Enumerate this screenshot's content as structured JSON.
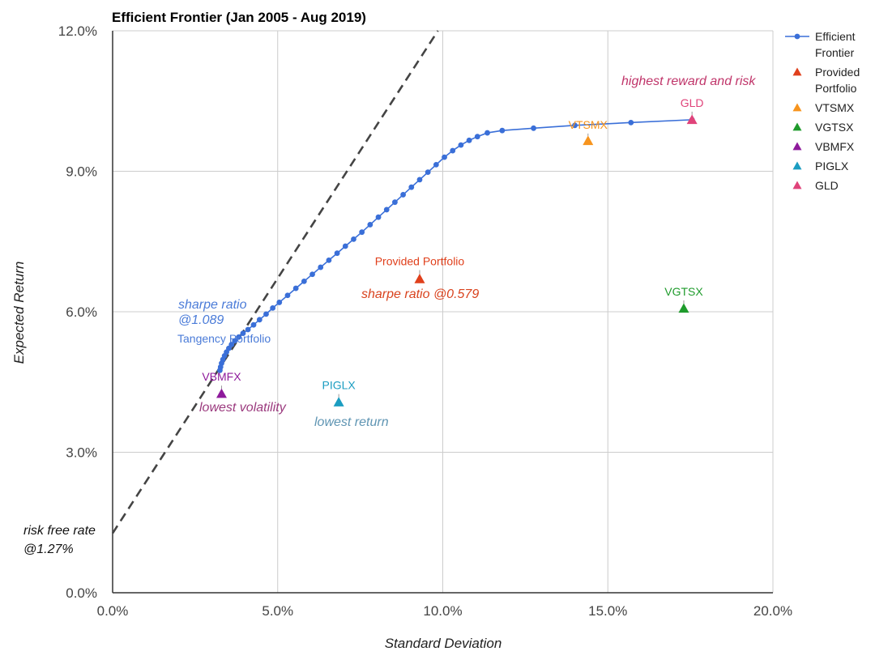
{
  "chart_data": {
    "type": "scatter",
    "title": "Efficient Frontier (Jan 2005 - Aug 2019)",
    "xlabel": "Standard Deviation",
    "ylabel": "Expected Return",
    "xlim": [
      0,
      20
    ],
    "ylim": [
      0,
      12
    ],
    "x_ticks": [
      "0.0%",
      "5.0%",
      "10.0%",
      "15.0%",
      "20.0%"
    ],
    "y_ticks": [
      "0.0%",
      "3.0%",
      "6.0%",
      "9.0%",
      "12.0%"
    ],
    "grid": true,
    "legend_position": "right",
    "colors": {
      "frontier": "#3a6fd8",
      "provided": "#e0401c",
      "vtsmx": "#f7941d",
      "vgtsx": "#1f9b2c",
      "vbmfx": "#8e1a9b",
      "piglx": "#1b9dc1",
      "gld": "#e0437a",
      "cml": "#444444"
    },
    "frontier": {
      "name": "Efficient Frontier",
      "points": [
        [
          3.25,
          4.75
        ],
        [
          3.27,
          4.82
        ],
        [
          3.3,
          4.9
        ],
        [
          3.34,
          4.98
        ],
        [
          3.39,
          5.06
        ],
        [
          3.45,
          5.14
        ],
        [
          3.52,
          5.22
        ],
        [
          3.6,
          5.3
        ],
        [
          3.7,
          5.38
        ],
        [
          3.82,
          5.46
        ],
        [
          3.95,
          5.54
        ],
        [
          4.1,
          5.62
        ],
        [
          4.27,
          5.72
        ],
        [
          4.45,
          5.83
        ],
        [
          4.65,
          5.95
        ],
        [
          4.85,
          6.08
        ],
        [
          5.05,
          6.2
        ],
        [
          5.3,
          6.35
        ],
        [
          5.55,
          6.5
        ],
        [
          5.8,
          6.65
        ],
        [
          6.05,
          6.8
        ],
        [
          6.3,
          6.95
        ],
        [
          6.55,
          7.1
        ],
        [
          6.8,
          7.25
        ],
        [
          7.05,
          7.4
        ],
        [
          7.3,
          7.55
        ],
        [
          7.55,
          7.7
        ],
        [
          7.8,
          7.86
        ],
        [
          8.05,
          8.02
        ],
        [
          8.3,
          8.18
        ],
        [
          8.55,
          8.34
        ],
        [
          8.8,
          8.5
        ],
        [
          9.05,
          8.66
        ],
        [
          9.3,
          8.82
        ],
        [
          9.55,
          8.98
        ],
        [
          9.8,
          9.14
        ],
        [
          10.05,
          9.3
        ],
        [
          10.3,
          9.44
        ],
        [
          10.55,
          9.56
        ],
        [
          10.8,
          9.66
        ],
        [
          11.05,
          9.74
        ],
        [
          11.35,
          9.82
        ],
        [
          11.8,
          9.87
        ],
        [
          12.75,
          9.92
        ],
        [
          14.0,
          9.98
        ],
        [
          15.7,
          10.04
        ],
        [
          17.55,
          10.1
        ]
      ]
    },
    "assets": [
      {
        "key": "provided",
        "name": "Provided Portfolio",
        "label": "Provided Portfolio",
        "x": 9.3,
        "y": 6.7
      },
      {
        "key": "vtsmx",
        "name": "VTSMX",
        "label": "VTSMX",
        "x": 14.4,
        "y": 9.65
      },
      {
        "key": "vgtsx",
        "name": "VGTSX",
        "label": "VGTSX",
        "x": 17.3,
        "y": 6.07
      },
      {
        "key": "vbmfx",
        "name": "VBMFX",
        "label": "VBMFX",
        "x": 3.3,
        "y": 4.25
      },
      {
        "key": "piglx",
        "name": "PIGLX",
        "label": "PIGLX",
        "x": 6.85,
        "y": 4.07
      },
      {
        "key": "gld",
        "name": "GLD",
        "label": "GLD",
        "x": 17.55,
        "y": 10.1
      }
    ],
    "tangency_label": "Tangency Portfolio",
    "capital_market_line": {
      "risk_free_rate": 1.27,
      "sharpe_ratio": 1.089
    },
    "annotations": {
      "tangency_sharpe_line1": "sharpe ratio",
      "tangency_sharpe_line2": "@1.089",
      "provided_sharpe": "sharpe ratio @0.579",
      "lowest_volatility": "lowest volatility",
      "lowest_return": "lowest return",
      "highest": "highest reward and risk",
      "risk_free_line1": "risk free rate",
      "risk_free_line2": "@1.27%"
    },
    "legend": [
      {
        "key": "frontier",
        "lines": [
          "Efficient",
          "Frontier"
        ]
      },
      {
        "key": "provided",
        "lines": [
          "Provided",
          "Portfolio"
        ]
      },
      {
        "key": "vtsmx",
        "lines": [
          "VTSMX"
        ]
      },
      {
        "key": "vgtsx",
        "lines": [
          "VGTSX"
        ]
      },
      {
        "key": "vbmfx",
        "lines": [
          "VBMFX"
        ]
      },
      {
        "key": "piglx",
        "lines": [
          "PIGLX"
        ]
      },
      {
        "key": "gld",
        "lines": [
          "GLD"
        ]
      }
    ]
  }
}
